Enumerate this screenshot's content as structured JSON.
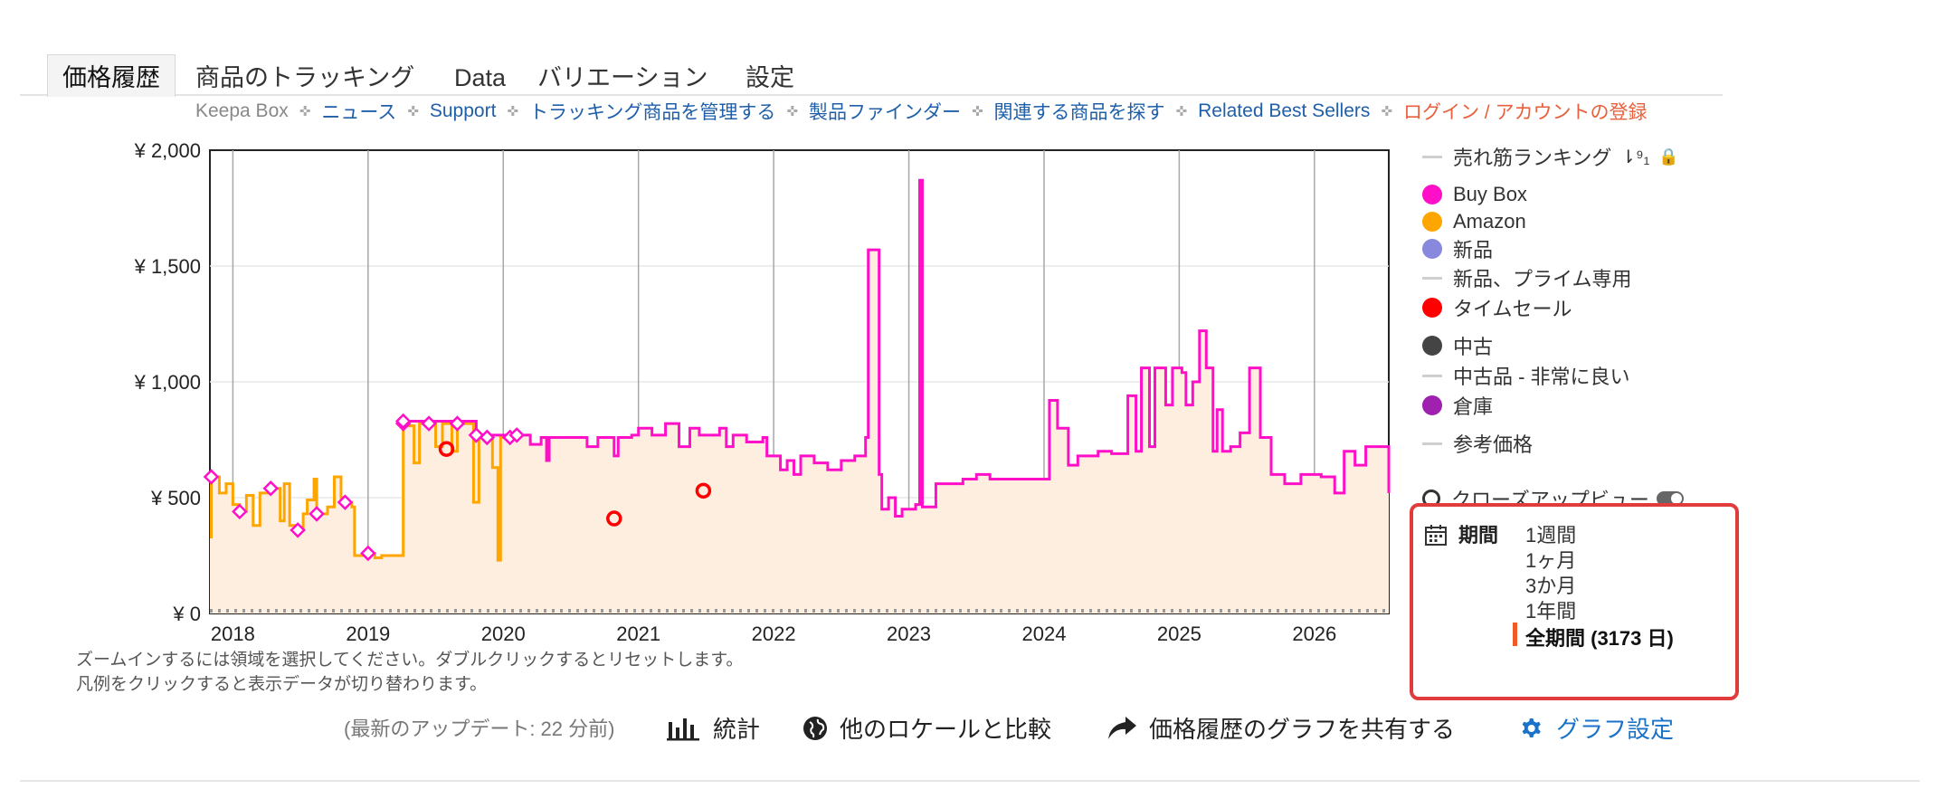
{
  "tabs": [
    "価格履歴",
    "商品のトラッキング",
    "Data",
    "バリエーション",
    "設定"
  ],
  "nav": {
    "brand": "Keepa Box",
    "links": [
      "ニュース",
      "Support",
      "トラッキング商品を管理する",
      "製品ファインダー",
      "関連する商品を探す",
      "Related Best Sellers"
    ],
    "login": "ログイン / アカウントの登録"
  },
  "legend": {
    "rank": "売れ筋ランキング",
    "buybox": "Buy Box",
    "amazon": "Amazon",
    "new": "新品",
    "new_prime": "新品、プライム専用",
    "timesale": "タイムセール",
    "used": "中古",
    "used_verygood": "中古品 - 非常に良い",
    "warehouse": "倉庫",
    "reference": "参考価格",
    "closeup": "クローズアップビュー",
    "colors": {
      "buybox": "#ff10c8",
      "amazon": "#ffa500",
      "new": "#8888dd",
      "timesale": "#ff0000",
      "used": "#444444",
      "warehouse": "#a020b0",
      "dash": "#cccccc"
    }
  },
  "period": {
    "label": "期間",
    "options": [
      "1週間",
      "1ヶ月",
      "3か月",
      "1年間",
      "全期間 (3173 日)"
    ],
    "selected": 4
  },
  "hints": {
    "zoom": "ズームインするには領域を選択してください。ダブルクリックするとリセットします。",
    "legend_click": "凡例をクリックすると表示データが切り替わります。"
  },
  "actions": {
    "updated": "(最新のアップデート: 22 分前)",
    "stats": "統計",
    "compare": "他のロケールと比較",
    "share": "価格履歴のグラフを共有する",
    "settings": "グラフ設定"
  },
  "chart_data": {
    "type": "line",
    "title": "",
    "xlabel": "",
    "ylabel": "",
    "x_ticks": [
      "2018",
      "2019",
      "2020",
      "2021",
      "2022",
      "2023",
      "2024",
      "2025",
      "2026"
    ],
    "y_ticks": [
      "¥ 0",
      "¥ 500",
      "¥ 1,000",
      "¥ 1,500",
      "¥ 2,000"
    ],
    "xlim": [
      2017.83,
      2026.55
    ],
    "ylim": [
      0,
      2000
    ],
    "grid": true,
    "legend_position": "right",
    "series": [
      {
        "name": "Amazon",
        "color": "#ffa500",
        "step": true,
        "points": [
          [
            2017.83,
            330
          ],
          [
            2017.84,
            590
          ],
          [
            2017.9,
            520
          ],
          [
            2017.95,
            560
          ],
          [
            2018.0,
            470
          ],
          [
            2018.05,
            440
          ],
          [
            2018.1,
            510
          ],
          [
            2018.15,
            380
          ],
          [
            2018.2,
            520
          ],
          [
            2018.28,
            540
          ],
          [
            2018.35,
            400
          ],
          [
            2018.38,
            560
          ],
          [
            2018.42,
            380
          ],
          [
            2018.48,
            360
          ],
          [
            2018.52,
            430
          ],
          [
            2018.55,
            490
          ],
          [
            2018.6,
            580
          ],
          [
            2018.62,
            430
          ],
          [
            2018.7,
            460
          ],
          [
            2018.75,
            590
          ],
          [
            2018.8,
            500
          ],
          [
            2018.83,
            480
          ],
          [
            2018.88,
            460
          ],
          [
            2018.9,
            250
          ],
          [
            2018.95,
            250
          ],
          [
            2019.0,
            260
          ],
          [
            2019.05,
            240
          ],
          [
            2019.1,
            250
          ],
          [
            2019.18,
            250
          ],
          [
            2019.26,
            820
          ],
          [
            2019.3,
            810
          ],
          [
            2019.34,
            650
          ],
          [
            2019.38,
            820
          ],
          [
            2019.45,
            820
          ],
          [
            2019.5,
            720
          ],
          [
            2019.55,
            820
          ],
          [
            2019.62,
            700
          ],
          [
            2019.66,
            820
          ],
          [
            2019.72,
            820
          ],
          [
            2019.78,
            480
          ],
          [
            2019.82,
            760
          ],
          [
            2019.88,
            760
          ],
          [
            2019.92,
            630
          ],
          [
            2019.96,
            230
          ],
          [
            2019.98,
            760
          ],
          [
            2020.05,
            760
          ],
          [
            2020.1,
            760
          ]
        ]
      },
      {
        "name": "Buy Box",
        "color": "#ff10c8",
        "step": true,
        "points": [
          [
            2019.26,
            830
          ],
          [
            2019.8,
            770
          ],
          [
            2020.1,
            770
          ],
          [
            2020.2,
            730
          ],
          [
            2020.28,
            760
          ],
          [
            2020.32,
            660
          ],
          [
            2020.34,
            760
          ],
          [
            2020.5,
            760
          ],
          [
            2020.62,
            720
          ],
          [
            2020.7,
            760
          ],
          [
            2020.82,
            680
          ],
          [
            2020.85,
            760
          ],
          [
            2020.95,
            770
          ],
          [
            2021.0,
            800
          ],
          [
            2021.1,
            770
          ],
          [
            2021.2,
            820
          ],
          [
            2021.3,
            720
          ],
          [
            2021.38,
            800
          ],
          [
            2021.45,
            770
          ],
          [
            2021.6,
            800
          ],
          [
            2021.65,
            720
          ],
          [
            2021.7,
            770
          ],
          [
            2021.8,
            740
          ],
          [
            2021.92,
            760
          ],
          [
            2021.95,
            680
          ],
          [
            2022.0,
            680
          ],
          [
            2022.05,
            620
          ],
          [
            2022.1,
            660
          ],
          [
            2022.15,
            600
          ],
          [
            2022.2,
            680
          ],
          [
            2022.3,
            650
          ],
          [
            2022.4,
            620
          ],
          [
            2022.5,
            660
          ],
          [
            2022.6,
            680
          ],
          [
            2022.68,
            760
          ],
          [
            2022.7,
            1570
          ],
          [
            2022.78,
            600
          ],
          [
            2022.8,
            450
          ],
          [
            2022.85,
            500
          ],
          [
            2022.9,
            420
          ],
          [
            2022.95,
            450
          ],
          [
            2023.05,
            470
          ],
          [
            2023.08,
            1870
          ],
          [
            2023.1,
            460
          ],
          [
            2023.2,
            560
          ],
          [
            2023.3,
            560
          ],
          [
            2023.4,
            580
          ],
          [
            2023.5,
            600
          ],
          [
            2023.6,
            580
          ],
          [
            2024.04,
            920
          ],
          [
            2024.1,
            800
          ],
          [
            2024.18,
            640
          ],
          [
            2024.25,
            680
          ],
          [
            2024.4,
            700
          ],
          [
            2024.5,
            690
          ],
          [
            2024.62,
            940
          ],
          [
            2024.68,
            700
          ],
          [
            2024.72,
            1060
          ],
          [
            2024.78,
            720
          ],
          [
            2024.82,
            1060
          ],
          [
            2024.9,
            900
          ],
          [
            2024.95,
            1060
          ],
          [
            2025.02,
            1040
          ],
          [
            2025.05,
            900
          ],
          [
            2025.1,
            1000
          ],
          [
            2025.15,
            1220
          ],
          [
            2025.2,
            1060
          ],
          [
            2025.25,
            700
          ],
          [
            2025.28,
            880
          ],
          [
            2025.32,
            700
          ],
          [
            2025.38,
            720
          ],
          [
            2025.45,
            780
          ],
          [
            2025.52,
            1060
          ],
          [
            2025.6,
            760
          ],
          [
            2025.68,
            600
          ],
          [
            2025.78,
            560
          ],
          [
            2025.9,
            600
          ],
          [
            2026.05,
            590
          ],
          [
            2026.15,
            520
          ],
          [
            2026.22,
            700
          ],
          [
            2026.3,
            640
          ],
          [
            2026.38,
            720
          ],
          [
            2026.5,
            720
          ],
          [
            2026.55,
            520
          ]
        ]
      },
      {
        "name": "タイムセール",
        "color": "#ff0000",
        "type": "scatter",
        "points": [
          [
            2019.58,
            710
          ],
          [
            2020.82,
            410
          ],
          [
            2021.48,
            530
          ]
        ]
      }
    ]
  }
}
